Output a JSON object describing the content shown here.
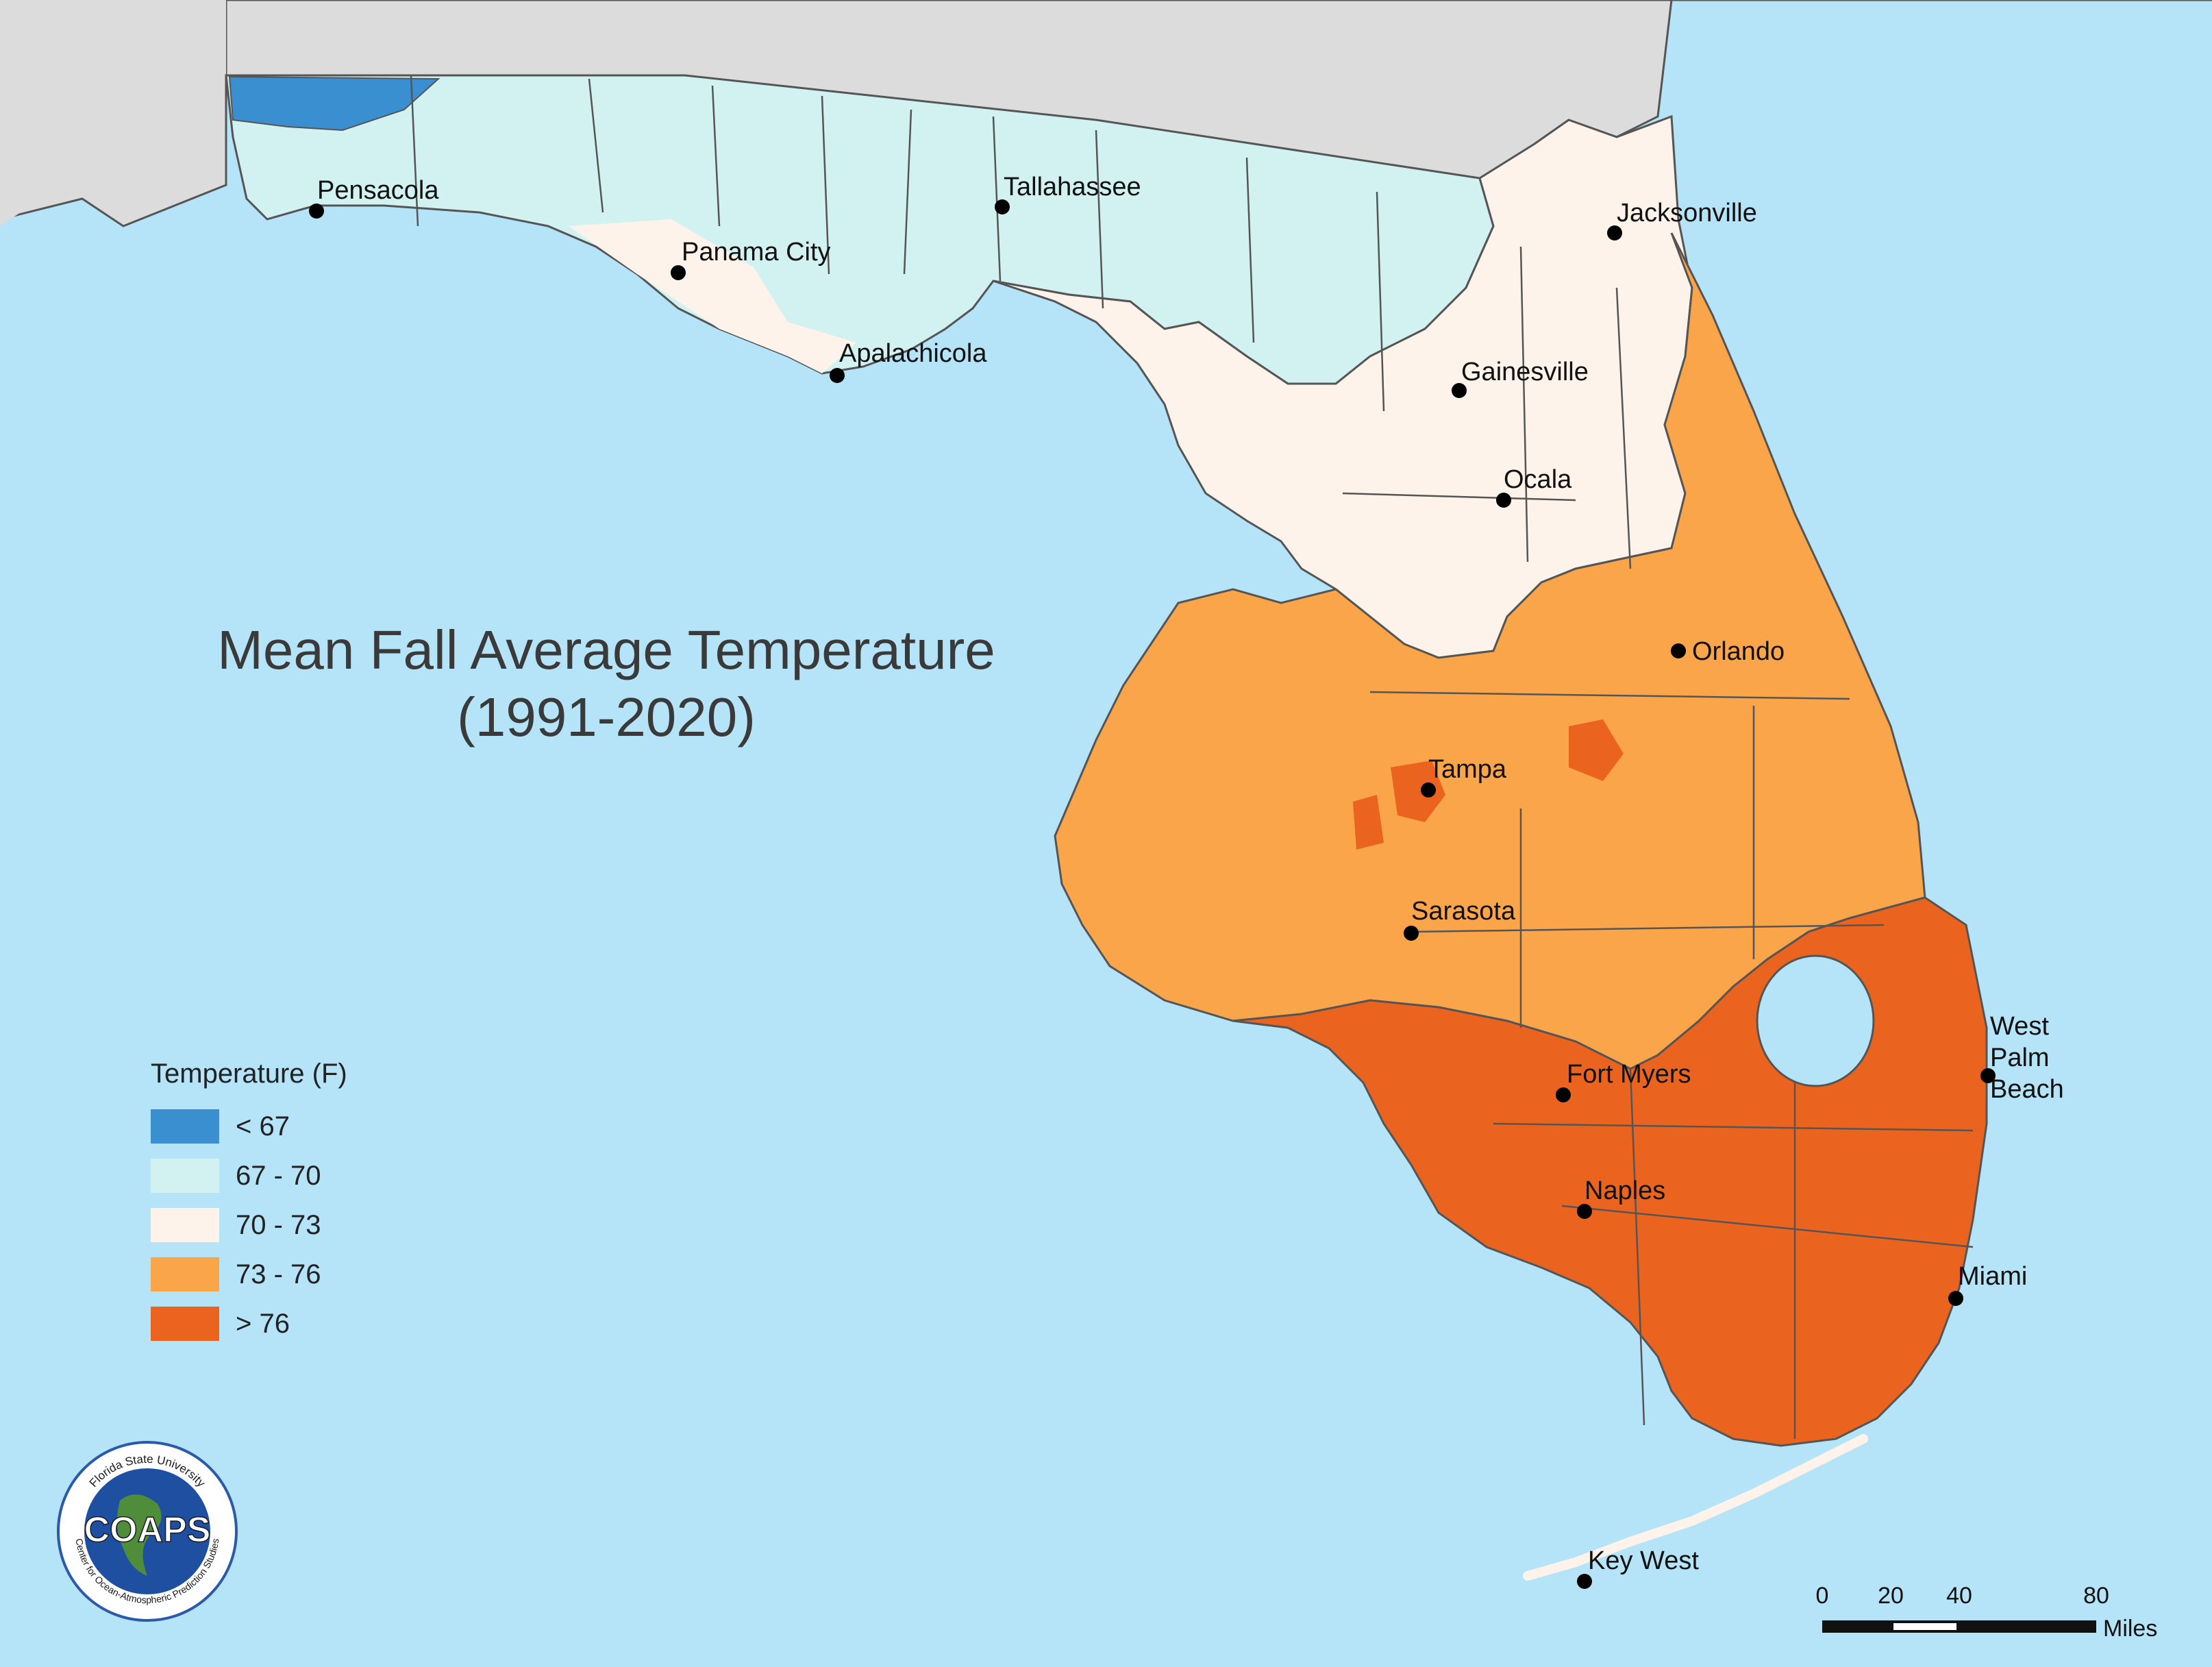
{
  "map": {
    "title_line1": "Mean Fall Average Temperature",
    "title_line2": "(1991-2020)",
    "legend": {
      "title": "Temperature (F)",
      "items": [
        {
          "label": "< 67",
          "color": "#3a8fd0"
        },
        {
          "label": "67 - 70",
          "color": "#d2f2f2"
        },
        {
          "label": "70 - 73",
          "color": "#fdf3ea"
        },
        {
          "label": "73 - 76",
          "color": "#fba54a"
        },
        {
          "label": "> 76",
          "color": "#ea6420"
        }
      ]
    },
    "cities": [
      {
        "name": "Pensacola"
      },
      {
        "name": "Panama City"
      },
      {
        "name": "Tallahassee"
      },
      {
        "name": "Apalachicola"
      },
      {
        "name": "Jacksonville"
      },
      {
        "name": "Gainesville"
      },
      {
        "name": "Ocala"
      },
      {
        "name": "Orlando"
      },
      {
        "name": "Tampa"
      },
      {
        "name": "Sarasota"
      },
      {
        "name": "Fort Myers"
      },
      {
        "name": "West Palm Beach"
      },
      {
        "name": "Naples"
      },
      {
        "name": "Miami"
      },
      {
        "name": "Key West"
      }
    ],
    "scale": {
      "ticks": [
        "0",
        "20",
        "40",
        "80"
      ],
      "units": "Miles"
    },
    "logo": {
      "text": "COAPS",
      "ring_top": "Florida State University",
      "ring_bottom": "Center for Ocean-Atmospheric Prediction Studies"
    },
    "colors": {
      "water": "#b5e3f8",
      "neighbor_land": "#dcdcdc",
      "county_lines": "#555555"
    }
  }
}
